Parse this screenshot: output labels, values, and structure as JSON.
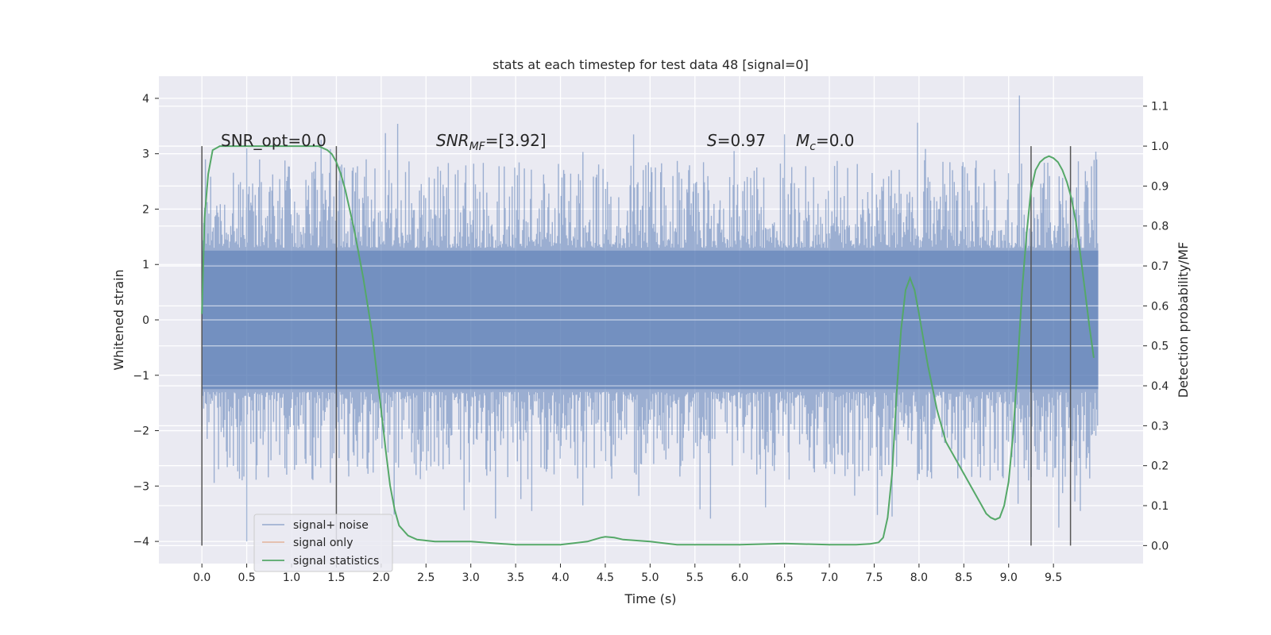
{
  "chart_data": {
    "type": "line",
    "title": "stats at each timestep for test data 48 [signal=0]",
    "xlabel": "Time (s)",
    "ylabel": "Whitened strain",
    "y2label": "Detection probability/MF",
    "xlim": [
      -0.48,
      10.5
    ],
    "ylim": [
      -4.4,
      4.4
    ],
    "y2lim": [
      -0.045,
      1.175
    ],
    "x_ticks": [
      "0.0",
      "0.5",
      "1.0",
      "1.5",
      "2.0",
      "2.5",
      "3.0",
      "3.5",
      "4.0",
      "4.5",
      "5.0",
      "5.5",
      "6.0",
      "6.5",
      "7.0",
      "7.5",
      "8.0",
      "8.5",
      "9.0",
      "9.5"
    ],
    "x_tick_values": [
      0,
      0.5,
      1,
      1.5,
      2,
      2.5,
      3,
      3.5,
      4,
      4.5,
      5,
      5.5,
      6,
      6.5,
      7,
      7.5,
      8,
      8.5,
      9,
      9.5
    ],
    "y_ticks": [
      "4",
      "3",
      "2",
      "1",
      "0",
      "−1",
      "−2",
      "−3",
      "−4"
    ],
    "y_tick_values": [
      4,
      3,
      2,
      1,
      0,
      -1,
      -2,
      -3,
      -4
    ],
    "y2_ticks": [
      "1.1",
      "1.0",
      "0.9",
      "0.8",
      "0.7",
      "0.6",
      "0.5",
      "0.4",
      "0.3",
      "0.2",
      "0.1",
      "0.0"
    ],
    "y2_tick_values": [
      1.1,
      1.0,
      0.9,
      0.8,
      0.7,
      0.6,
      0.5,
      0.4,
      0.3,
      0.2,
      0.1,
      0.0
    ],
    "grid": true,
    "legend_position": "lower-left",
    "legend": [
      "signal+ noise",
      "signal only",
      "signal statistics"
    ],
    "annotations": {
      "snr_opt": "SNR_opt=0.0",
      "snr_mf_prefix": "SNR",
      "snr_mf_sub": "MF",
      "snr_mf_value": "=[3.92]",
      "s_prefix": "S",
      "s_value": "=0.97",
      "mc_prefix": "M",
      "mc_sub": "c",
      "mc_value": "=0.0"
    },
    "noise": {
      "x_range": [
        0,
        10
      ],
      "core_amplitude": 1.25,
      "spike_max": 4.05,
      "spike_min": -4.0
    },
    "markers_x": [
      0,
      1.5,
      9.25,
      9.69
    ],
    "series": [
      {
        "name": "signal statistics",
        "x": [
          0,
          0.03,
          0.07,
          0.12,
          0.2,
          0.3,
          0.5,
          0.8,
          1.1,
          1.3,
          1.4,
          1.45,
          1.5,
          1.55,
          1.6,
          1.7,
          1.8,
          1.9,
          2.0,
          2.05,
          2.1,
          2.15,
          2.2,
          2.3,
          2.4,
          2.6,
          3.0,
          3.5,
          4.0,
          4.3,
          4.45,
          4.5,
          4.6,
          4.7,
          5.0,
          5.3,
          6.0,
          6.5,
          7.0,
          7.3,
          7.45,
          7.55,
          7.6,
          7.65,
          7.7,
          7.75,
          7.8,
          7.85,
          7.9,
          7.95,
          8.0,
          8.1,
          8.2,
          8.3,
          8.4,
          8.5,
          8.6,
          8.7,
          8.75,
          8.8,
          8.85,
          8.9,
          8.95,
          9.0,
          9.05,
          9.1,
          9.15,
          9.2,
          9.25,
          9.3,
          9.35,
          9.4,
          9.45,
          9.5,
          9.55,
          9.6,
          9.65,
          9.7,
          9.75,
          9.8,
          9.85,
          9.9,
          9.95
        ],
        "y": [
          0.58,
          0.82,
          0.93,
          0.99,
          1.0,
          1.0,
          1.0,
          1.0,
          1.0,
          1.0,
          0.99,
          0.98,
          0.96,
          0.93,
          0.89,
          0.79,
          0.67,
          0.53,
          0.34,
          0.24,
          0.15,
          0.09,
          0.05,
          0.025,
          0.015,
          0.01,
          0.01,
          0.002,
          0.002,
          0.01,
          0.02,
          0.022,
          0.02,
          0.015,
          0.01,
          0.002,
          0.002,
          0.005,
          0.002,
          0.002,
          0.004,
          0.008,
          0.02,
          0.07,
          0.18,
          0.38,
          0.54,
          0.64,
          0.67,
          0.64,
          0.58,
          0.45,
          0.34,
          0.26,
          0.22,
          0.18,
          0.14,
          0.1,
          0.08,
          0.07,
          0.065,
          0.07,
          0.1,
          0.16,
          0.28,
          0.45,
          0.64,
          0.78,
          0.89,
          0.94,
          0.96,
          0.97,
          0.975,
          0.97,
          0.96,
          0.94,
          0.91,
          0.87,
          0.81,
          0.73,
          0.64,
          0.55,
          0.47
        ]
      }
    ]
  }
}
